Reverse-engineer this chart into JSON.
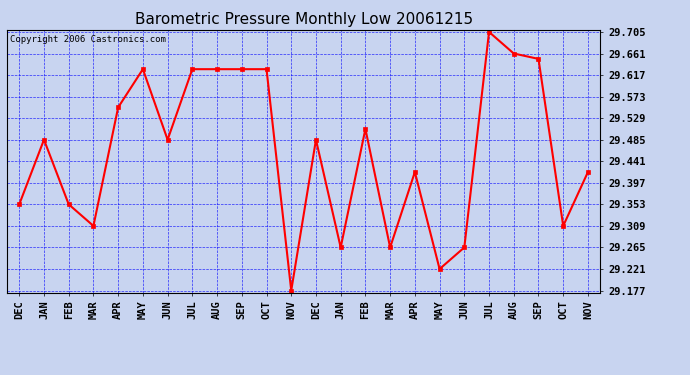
{
  "title": "Barometric Pressure Monthly Low 20061215",
  "copyright": "Copyright 2006 Castronics.com",
  "months": [
    "DEC",
    "JAN",
    "FEB",
    "MAR",
    "APR",
    "MAY",
    "JUN",
    "JUL",
    "AUG",
    "SEP",
    "OCT",
    "NOV",
    "DEC",
    "JAN",
    "FEB",
    "MAR",
    "APR",
    "MAY",
    "JUN",
    "JUL",
    "AUG",
    "SEP",
    "OCT",
    "NOV"
  ],
  "values": [
    29.353,
    29.485,
    29.353,
    29.309,
    29.551,
    29.629,
    29.485,
    29.629,
    29.629,
    29.629,
    29.629,
    29.177,
    29.485,
    29.265,
    29.507,
    29.265,
    29.419,
    29.221,
    29.265,
    29.705,
    29.661,
    29.65,
    29.309,
    29.419
  ],
  "ylim_min": 29.177,
  "ylim_max": 29.705,
  "yticks": [
    29.177,
    29.221,
    29.265,
    29.309,
    29.353,
    29.397,
    29.441,
    29.485,
    29.529,
    29.573,
    29.617,
    29.661,
    29.705
  ],
  "line_color": "red",
  "marker": "s",
  "marker_size": 2.5,
  "line_width": 1.5,
  "bg_color": "#c8d4f0",
  "title_fontsize": 11,
  "copyright_fontsize": 6.5,
  "tick_label_fontsize": 7.5
}
